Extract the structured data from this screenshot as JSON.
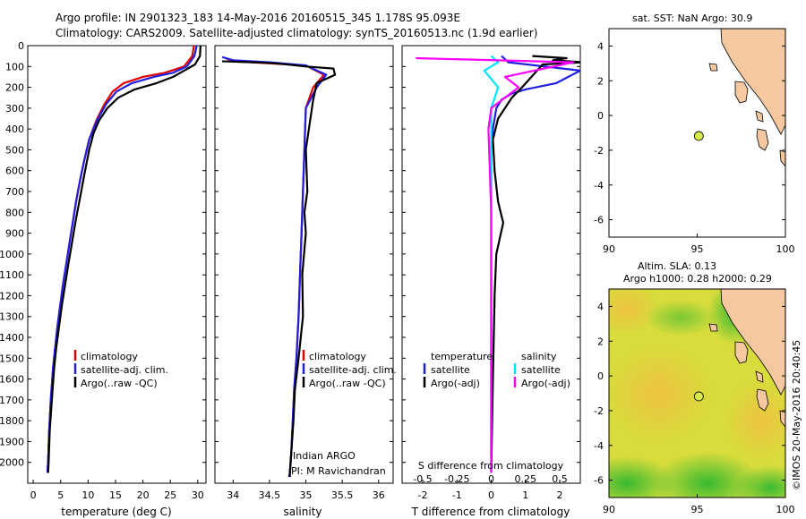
{
  "title": {
    "line1": "Argo profile: IN 2901323_183 14-May-2016 20160515_345 1.178S 95.093E",
    "line2": "Climatology: CARS2009. Satellite-adjusted climatology: synTS_20160513.nc (1.9d earlier)"
  },
  "colors": {
    "climatology": "#e00000",
    "satellite": "#1f1fe0",
    "argo": "#000000",
    "satellite_s": "#00e5ff",
    "argo_s": "#ff00ff",
    "land": "#f5c8a0",
    "float": "#d8e84a"
  },
  "panel_text": {
    "temp_xlabel": "temperature (deg C)",
    "sal_xlabel": "salinity",
    "diff_xlabel_top": "S difference from climatology",
    "diff_xlabel_bottom": "T difference from climatology",
    "legend_climatology": "climatology",
    "legend_satellite": "satellite-adj. clim.",
    "legend_argo": "Argo(..raw -QC)",
    "diff_leg_temperature": "temperature",
    "diff_leg_salinity": "salinity",
    "diff_leg_satellite": "satellite",
    "diff_leg_argo": "Argo(-adj)",
    "program": "Indian ARGO",
    "pi": "PI: M Ravichandran",
    "map1_title": "sat. SST: NaN Argo: 30.9",
    "map2_title1": "Altim. SLA: 0.13",
    "map2_title2": "Argo h1000: 0.28 h2000: 0.29",
    "credit": "©IMOS 20-May-2016 20:40:45"
  },
  "chart_data": [
    {
      "type": "line",
      "name": "temperature",
      "xlabel": "temperature (deg C)",
      "ylabel": "",
      "xlim": [
        -1,
        31.5
      ],
      "ylim": [
        2100,
        0
      ],
      "xticks": [
        0,
        5,
        10,
        15,
        20,
        25,
        30
      ],
      "yticks": [
        0,
        100,
        200,
        300,
        400,
        500,
        600,
        700,
        800,
        900,
        1000,
        1100,
        1200,
        1300,
        1400,
        1500,
        1600,
        1700,
        1800,
        1900,
        2000
      ],
      "legend": [
        "climatology",
        "satellite-adj. clim.",
        "Argo(..raw -QC)"
      ],
      "series": [
        {
          "name": "climatology",
          "color": "red",
          "x": [
            29.3,
            29.0,
            27.5,
            24.0,
            20.0,
            16.5,
            14.5,
            13.0,
            11.5,
            10.2,
            9.3,
            8.5,
            7.8,
            7.2,
            6.6,
            6.0,
            5.4,
            4.9,
            4.4,
            4.0,
            3.6,
            3.2,
            2.9,
            2.7,
            2.6
          ],
          "y": [
            0,
            50,
            100,
            130,
            150,
            180,
            220,
            280,
            360,
            450,
            550,
            650,
            750,
            850,
            950,
            1050,
            1150,
            1250,
            1350,
            1450,
            1550,
            1700,
            1850,
            2000,
            2050
          ]
        },
        {
          "name": "satellite-adj. clim.",
          "color": "blue",
          "x": [
            29.8,
            29.4,
            28.0,
            25.5,
            22.0,
            18.0,
            15.2,
            13.3,
            11.6,
            10.2,
            9.3,
            8.5,
            7.8,
            7.2,
            6.6,
            6.0,
            5.4,
            4.9,
            4.4,
            4.0,
            3.6,
            3.2,
            2.9,
            2.7,
            2.6
          ],
          "y": [
            0,
            50,
            100,
            130,
            150,
            180,
            220,
            280,
            360,
            450,
            550,
            650,
            750,
            850,
            950,
            1050,
            1150,
            1250,
            1350,
            1450,
            1550,
            1700,
            1850,
            2000,
            2050
          ]
        },
        {
          "name": "Argo(..raw -QC)",
          "color": "black",
          "x": [
            30.5,
            30.4,
            29.5,
            25.5,
            22.5,
            18.5,
            15.5,
            13.5,
            12.0,
            11.0,
            10.2,
            9.3,
            8.6,
            7.8,
            7.1,
            6.4,
            5.8,
            5.2,
            4.7,
            4.2,
            3.8,
            3.4,
            3.0,
            2.8,
            2.7
          ],
          "y": [
            0,
            50,
            90,
            150,
            180,
            210,
            250,
            300,
            360,
            420,
            500,
            620,
            720,
            830,
            940,
            1050,
            1150,
            1250,
            1350,
            1450,
            1550,
            1700,
            1850,
            2000,
            2050
          ]
        }
      ]
    },
    {
      "type": "line",
      "name": "salinity",
      "xlabel": "salinity",
      "xlim": [
        33.75,
        36.2
      ],
      "ylim": [
        2100,
        0
      ],
      "xticks": [
        34,
        34.5,
        35,
        35.5,
        36
      ],
      "legend": [
        "climatology",
        "satellite-adj. clim.",
        "Argo(..raw -QC)"
      ],
      "series": [
        {
          "name": "climatology",
          "color": "red",
          "x": [
            33.9,
            34.0,
            34.5,
            35.0,
            35.25,
            35.1,
            35.0,
            34.98,
            34.96,
            34.94,
            34.92,
            34.9,
            34.87,
            34.84,
            34.82,
            34.8,
            34.78,
            34.77
          ],
          "y": [
            60,
            75,
            85,
            95,
            140,
            200,
            300,
            500,
            700,
            900,
            1100,
            1300,
            1500,
            1650,
            1800,
            1950,
            2050,
            2070
          ]
        },
        {
          "name": "satellite-adj. clim.",
          "color": "blue",
          "x": [
            33.85,
            34.0,
            34.5,
            35.0,
            35.28,
            35.15,
            35.0,
            34.98,
            34.96,
            34.94,
            34.92,
            34.9,
            34.87,
            34.84,
            34.82,
            34.8,
            34.78,
            34.77
          ],
          "y": [
            55,
            70,
            80,
            95,
            140,
            200,
            300,
            500,
            700,
            900,
            1100,
            1300,
            1500,
            1650,
            1800,
            1950,
            2050,
            2070
          ]
        },
        {
          "name": "Argo(..raw -QC)",
          "color": "black",
          "x": [
            33.85,
            34.3,
            34.6,
            35.0,
            35.38,
            35.4,
            35.15,
            35.1,
            35.0,
            35.02,
            34.98,
            35.0,
            34.95,
            34.96,
            34.9,
            34.85,
            34.83,
            34.8,
            34.78,
            34.78
          ],
          "y": [
            75,
            80,
            85,
            100,
            110,
            140,
            180,
            260,
            500,
            700,
            800,
            900,
            1100,
            1300,
            1500,
            1650,
            1800,
            1950,
            2050,
            2070
          ]
        }
      ]
    },
    {
      "type": "line",
      "name": "difference",
      "xlabel": "T difference from climatology",
      "xlabel_top": "S difference from climatology",
      "xlim_t": [
        -2.6,
        2.6
      ],
      "xticks_t": [
        -2,
        -1,
        0,
        1,
        2
      ],
      "xlim_s": [
        -0.65,
        0.65
      ],
      "xticks_s": [
        -0.5,
        -0.25,
        0,
        0.25,
        0.5
      ],
      "ylim": [
        2100,
        0
      ],
      "legend": [
        "temperature satellite",
        "temperature Argo(-adj)",
        "salinity satellite",
        "salinity Argo(-adj)"
      ],
      "series": [
        {
          "name": "temperature satellite",
          "color": "blue",
          "units": "T",
          "x": [
            0.3,
            0.5,
            2.6,
            1.9,
            1.0,
            0.6,
            0.3,
            0.15,
            0.05,
            0.0,
            0.0,
            0.0,
            0.0,
            0.0
          ],
          "y": [
            50,
            80,
            120,
            180,
            210,
            230,
            260,
            300,
            400,
            500,
            800,
            1200,
            1600,
            2050
          ]
        },
        {
          "name": "temperature Argo(-adj)",
          "color": "black",
          "units": "T",
          "x": [
            1.2,
            2.2,
            1.8,
            2.7,
            1.5,
            0.9,
            0.6,
            0.2,
            0.05,
            0.1,
            0.2,
            0.35,
            0.15,
            0.1,
            0.05,
            0.0
          ],
          "y": [
            50,
            60,
            70,
            80,
            90,
            200,
            250,
            350,
            450,
            600,
            750,
            850,
            1000,
            1200,
            1600,
            2050
          ]
        },
        {
          "name": "salinity satellite",
          "color": "cyan",
          "units": "S",
          "x": [
            0.0,
            0.05,
            -0.05,
            0.05,
            0.0,
            0.0,
            0.0,
            0.0,
            0.0
          ],
          "y": [
            50,
            80,
            120,
            200,
            300,
            500,
            1000,
            1500,
            2050
          ]
        },
        {
          "name": "salinity Argo(-adj)",
          "color": "magenta",
          "units": "S",
          "x": [
            -0.55,
            0.6,
            0.1,
            0.2,
            0.0,
            -0.02,
            0.0,
            0.0,
            0.0
          ],
          "y": [
            60,
            80,
            150,
            200,
            300,
            400,
            800,
            1400,
            2050
          ]
        }
      ]
    },
    {
      "type": "scatter",
      "name": "map_sst",
      "title": "sat. SST: NaN Argo: 30.9",
      "xlim": [
        90,
        100
      ],
      "ylim": [
        -7,
        5
      ],
      "xticks": [
        90,
        95,
        100
      ],
      "yticks": [
        -6,
        -4,
        -2,
        0,
        2,
        4
      ],
      "points": [
        {
          "x": 95.093,
          "y": -1.178
        }
      ]
    },
    {
      "type": "heatmap",
      "name": "map_sla",
      "title": "Altim. SLA: 0.13",
      "subtitle": "Argo h1000: 0.28 h2000: 0.29",
      "xlim": [
        90,
        100
      ],
      "ylim": [
        -7,
        5
      ],
      "xticks": [
        90,
        95,
        100
      ],
      "yticks": [
        -6,
        -4,
        -2,
        0,
        2,
        4
      ],
      "points": [
        {
          "x": 95.093,
          "y": -1.178
        }
      ]
    }
  ]
}
